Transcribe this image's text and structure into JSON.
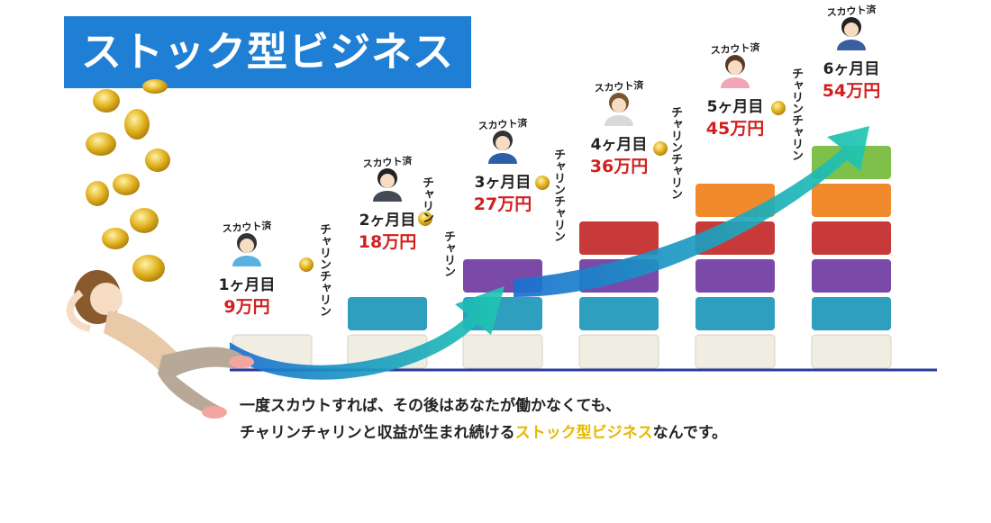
{
  "title": "ストック型ビジネス",
  "scout_label": "スカウト済",
  "chime_labels": [
    "チャリンチャリン",
    "チャリン",
    "チャリン",
    "チャリンチャリン",
    "チャリンチャリン",
    "チャリンチャリン"
  ],
  "months": [
    {
      "month": "1ヶ月目",
      "income": "9万円",
      "blocks": 1
    },
    {
      "month": "2ヶ月目",
      "income": "18万円",
      "blocks": 2
    },
    {
      "month": "3ヶ月目",
      "income": "27万円",
      "blocks": 3
    },
    {
      "month": "4ヶ月目",
      "income": "36万円",
      "blocks": 4
    },
    {
      "month": "5ヶ月目",
      "income": "45万円",
      "blocks": 5
    },
    {
      "month": "6ヶ月目",
      "income": "54万円",
      "blocks": 6
    }
  ],
  "block_colors": [
    "#f0ede3",
    "#2f9fbf",
    "#7b4aa8",
    "#c83a3a",
    "#f08a2c",
    "#7fc04a"
  ],
  "caption_line1": "一度スカウトすれば、その後はあなたが働かなくても、",
  "caption_line2_pre": "チャリンチャリンと収益が生まれ続ける",
  "caption_line2_highlight": "ストック型ビジネス",
  "caption_line2_post": "なんです。"
}
